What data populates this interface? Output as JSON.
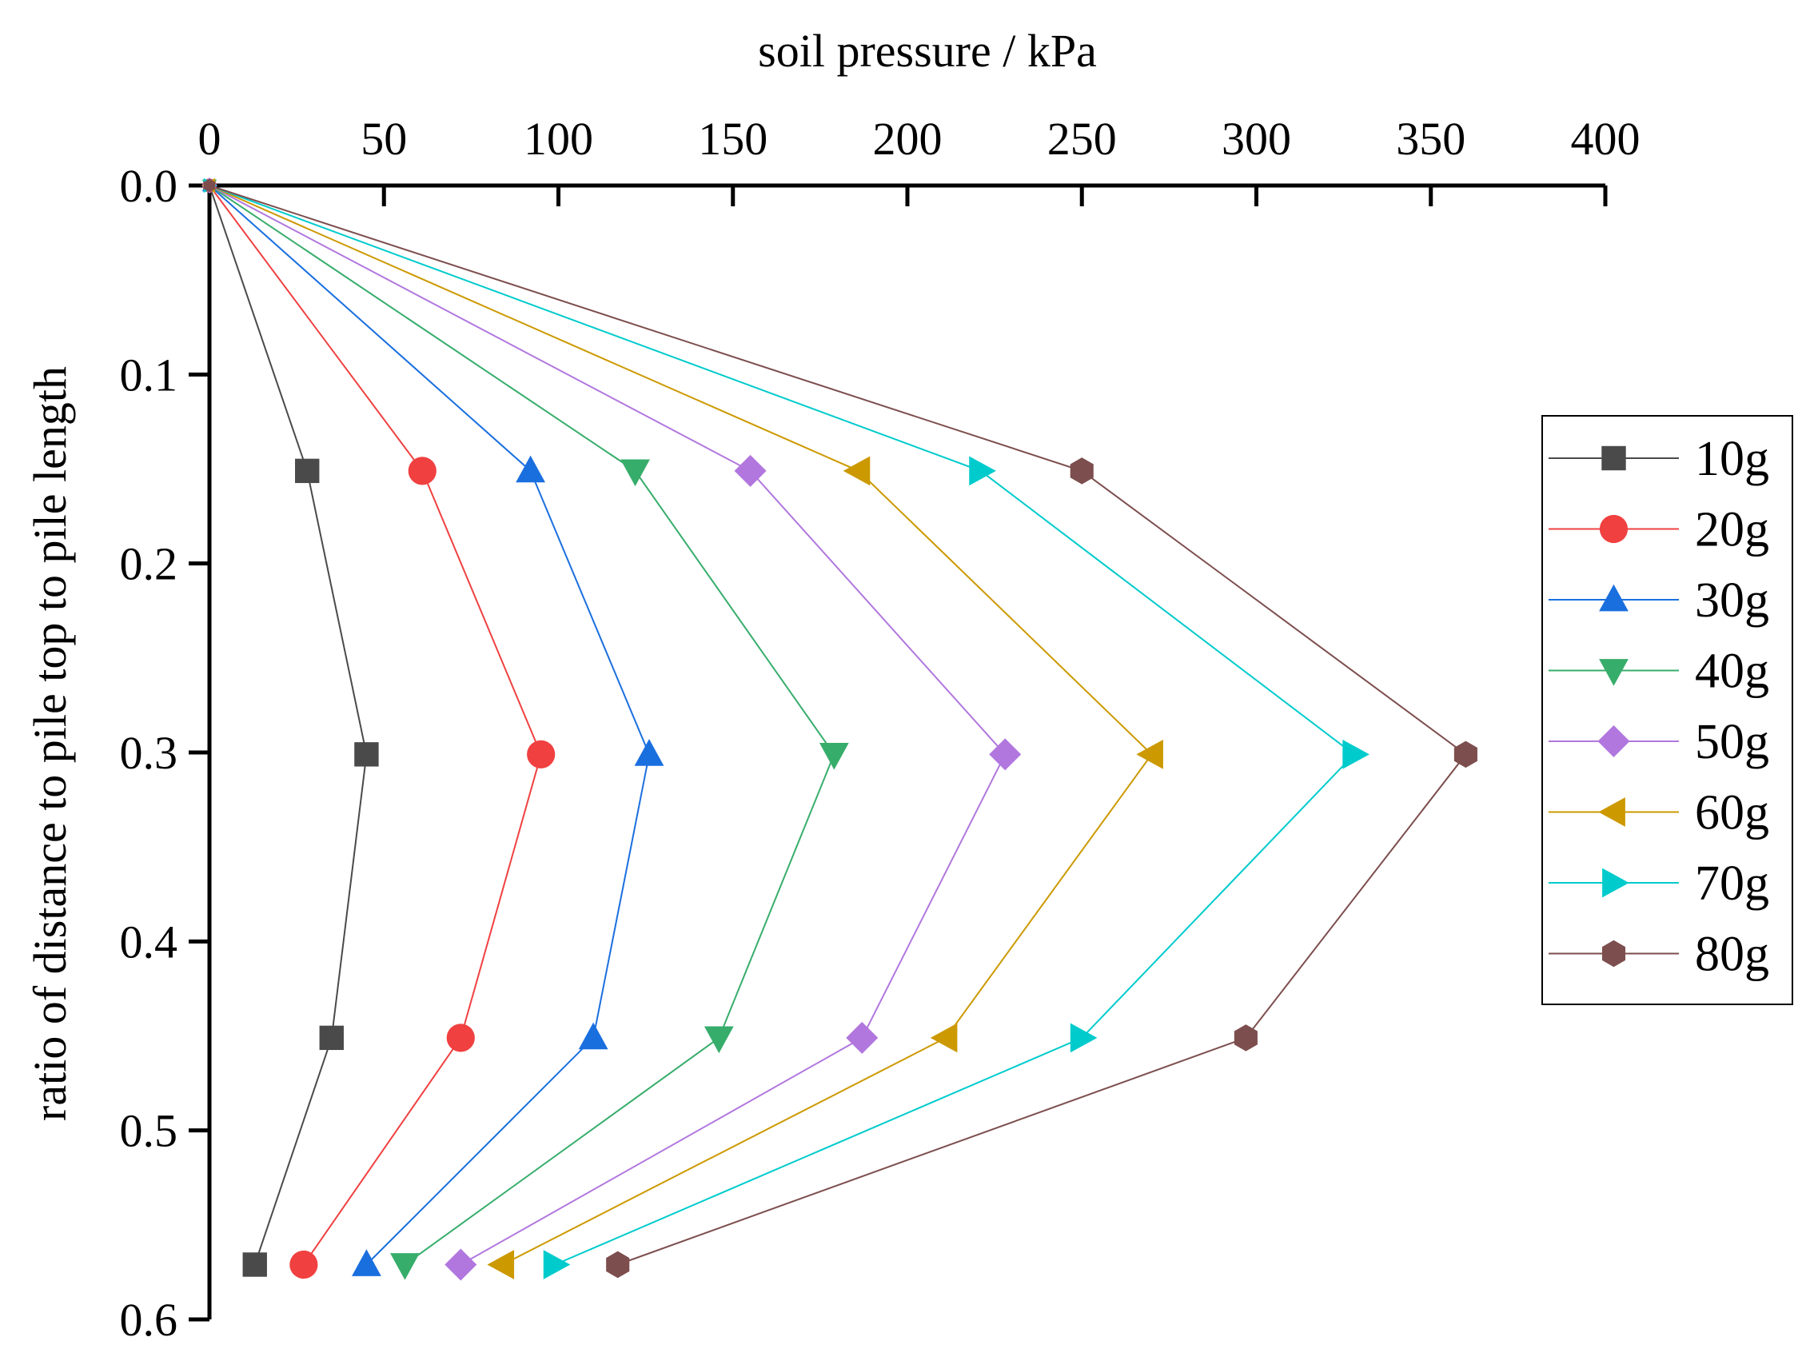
{
  "chart_data": {
    "type": "line",
    "xlabel": "soil pressure / kPa",
    "ylabel": "ratio of distance to pile top to pile length",
    "xlim": [
      0,
      400
    ],
    "ylim": [
      0.6,
      0.0
    ],
    "y_inverted": true,
    "x_axis_position": "top",
    "x_ticks": [
      0,
      50,
      100,
      150,
      200,
      250,
      300,
      350,
      400
    ],
    "x_tick_labels": [
      "0",
      "50",
      "100",
      "150",
      "200",
      "250",
      "300",
      "350",
      "400"
    ],
    "y_ticks": [
      0.0,
      0.1,
      0.2,
      0.3,
      0.4,
      0.5,
      0.6
    ],
    "y_tick_labels": [
      "0.0",
      "0.1",
      "0.2",
      "0.3",
      "0.4",
      "0.5",
      "0.6"
    ],
    "grid": false,
    "legend_position": "right",
    "series": [
      {
        "name": "10g",
        "marker": "square",
        "color": "#4a4a4a",
        "line_color": "#4a4a4a",
        "points": [
          [
            0,
            0.0
          ],
          [
            28,
            0.151
          ],
          [
            45,
            0.301
          ],
          [
            35,
            0.451
          ],
          [
            13,
            0.571
          ]
        ]
      },
      {
        "name": "20g",
        "marker": "circle",
        "color": "#f04040",
        "line_color": "#f04040",
        "points": [
          [
            0,
            0.0
          ],
          [
            61,
            0.151
          ],
          [
            95,
            0.301
          ],
          [
            72,
            0.451
          ],
          [
            27,
            0.571
          ]
        ]
      },
      {
        "name": "30g",
        "marker": "triangle-up",
        "color": "#1a6fdf",
        "line_color": "#1a6fdf",
        "points": [
          [
            0,
            0.0
          ],
          [
            92,
            0.151
          ],
          [
            126,
            0.301
          ],
          [
            110,
            0.451
          ],
          [
            45,
            0.571
          ]
        ]
      },
      {
        "name": "40g",
        "marker": "triangle-down",
        "color": "#37ad6b",
        "line_color": "#37ad6b",
        "points": [
          [
            0,
            0.0
          ],
          [
            122,
            0.151
          ],
          [
            179,
            0.301
          ],
          [
            146,
            0.451
          ],
          [
            56,
            0.571
          ]
        ]
      },
      {
        "name": "50g",
        "marker": "diamond",
        "color": "#b177de",
        "line_color": "#b177de",
        "points": [
          [
            0,
            0.0
          ],
          [
            155,
            0.151
          ],
          [
            228,
            0.301
          ],
          [
            187,
            0.451
          ],
          [
            72,
            0.571
          ]
        ]
      },
      {
        "name": "60g",
        "marker": "triangle-left",
        "color": "#cc9900",
        "line_color": "#cc9900",
        "points": [
          [
            0,
            0.0
          ],
          [
            186,
            0.151
          ],
          [
            270,
            0.301
          ],
          [
            211,
            0.451
          ],
          [
            84,
            0.571
          ]
        ]
      },
      {
        "name": "70g",
        "marker": "triangle-right",
        "color": "#00cbcc",
        "line_color": "#00cbcc",
        "points": [
          [
            0,
            0.0
          ],
          [
            221,
            0.151
          ],
          [
            328,
            0.301
          ],
          [
            250,
            0.451
          ],
          [
            99,
            0.571
          ]
        ]
      },
      {
        "name": "80g",
        "marker": "hexagon",
        "color": "#7d4e4e",
        "line_color": "#7d4e4e",
        "points": [
          [
            0,
            0.0
          ],
          [
            250,
            0.151
          ],
          [
            360,
            0.301
          ],
          [
            297,
            0.451
          ],
          [
            117,
            0.571
          ]
        ]
      }
    ]
  }
}
